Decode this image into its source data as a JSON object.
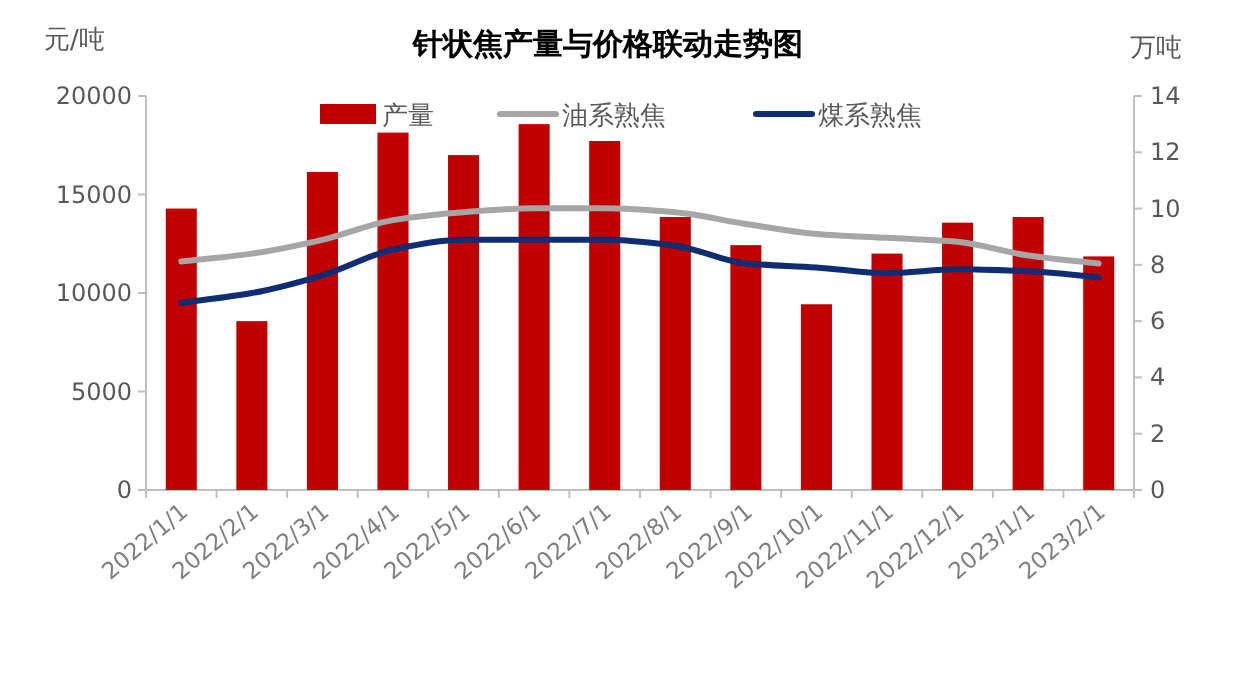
{
  "chart_data": {
    "type": "bar",
    "title": "针状焦产量与价格联动走势图",
    "ylabel": "元/吨",
    "y2label": "万吨",
    "categories": [
      "2022/1/1",
      "2022/2/1",
      "2022/3/1",
      "2022/4/1",
      "2022/5/1",
      "2022/6/1",
      "2022/7/1",
      "2022/8/1",
      "2022/9/1",
      "2022/10/1",
      "2022/11/1",
      "2022/12/1",
      "2023/1/1",
      "2023/2/1"
    ],
    "series": [
      {
        "name": "产量",
        "axis": "y2",
        "color": "#c00000",
        "values": [
          10.0,
          6.0,
          11.3,
          12.7,
          11.9,
          13.0,
          12.4,
          9.7,
          8.7,
          6.6,
          8.4,
          9.5,
          9.7,
          8.3
        ]
      },
      {
        "name": "油系熟焦",
        "type": "line",
        "color": "#a6a6a6",
        "values": [
          11600,
          12000,
          12700,
          13700,
          14100,
          14300,
          14300,
          14100,
          13500,
          13000,
          12800,
          12600,
          11900,
          11500
        ]
      },
      {
        "name": "煤系熟焦",
        "type": "line",
        "color": "#0e2d72",
        "values": [
          9500,
          10000,
          10900,
          12200,
          12700,
          12700,
          12700,
          12400,
          11500,
          11300,
          11000,
          11200,
          11100,
          10800
        ]
      }
    ],
    "ylim": [
      0,
      20000
    ],
    "yticks": [
      0,
      5000,
      10000,
      15000,
      20000
    ],
    "y2lim": [
      0,
      14
    ],
    "y2ticks": [
      0,
      2,
      4,
      6,
      8,
      10,
      12,
      14
    ],
    "legend": "top",
    "grid": false
  }
}
